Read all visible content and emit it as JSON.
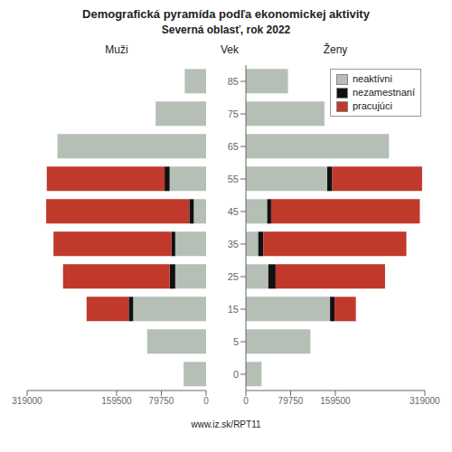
{
  "chart_data": [
    {
      "type": "bar",
      "orientation": "horizontal",
      "stacked": true,
      "grid": false,
      "tick_labels": "x",
      "title": "Demografická pyramída podľa ekonomickej aktivity",
      "subtitle": "Severná oblasť, rok 2022",
      "xlabel": "Muži",
      "annotations": [
        "www.iz.sk/RPT11"
      ],
      "categories": [
        "0",
        "5",
        "15",
        "25",
        "35",
        "45",
        "55",
        "65",
        "75",
        "85"
      ],
      "series": [
        {
          "name": "neaktívni",
          "color": "#b5bfb5",
          "values": [
            40000,
            105000,
            130000,
            55000,
            55000,
            22000,
            65000,
            265000,
            90000,
            38000
          ]
        },
        {
          "name": "nezamestnaní",
          "color": "#111111",
          "values": [
            0,
            0,
            8000,
            10000,
            7000,
            8000,
            9000,
            0,
            0,
            0
          ]
        },
        {
          "name": "pracujúci",
          "color": "#c0392b",
          "values": [
            0,
            0,
            75000,
            190000,
            210000,
            255000,
            210000,
            0,
            0,
            0
          ]
        }
      ],
      "xlim": [
        0,
        319000
      ],
      "xticks": [
        0,
        79750,
        159500,
        319000
      ]
    },
    {
      "type": "bar",
      "orientation": "horizontal",
      "stacked": true,
      "grid": false,
      "legend": "upper right",
      "xlabel": "Ženy",
      "ylabel": "Vek",
      "categories": [
        "0",
        "5",
        "15",
        "25",
        "35",
        "45",
        "55",
        "65",
        "75",
        "85"
      ],
      "series": [
        {
          "name": "neaktívni",
          "color": "#b5bfb5",
          "values": [
            28000,
            115000,
            150000,
            40000,
            22000,
            38000,
            145000,
            255000,
            140000,
            75000
          ]
        },
        {
          "name": "nezamestnaní",
          "color": "#111111",
          "values": [
            0,
            0,
            8000,
            13000,
            9000,
            7000,
            9000,
            0,
            0,
            0
          ]
        },
        {
          "name": "pracujúci",
          "color": "#c0392b",
          "values": [
            0,
            0,
            38000,
            195000,
            255000,
            265000,
            160000,
            0,
            0,
            0
          ]
        }
      ],
      "xlim": [
        0,
        319000
      ],
      "xticks": [
        0,
        79750,
        159500,
        319000
      ]
    }
  ]
}
